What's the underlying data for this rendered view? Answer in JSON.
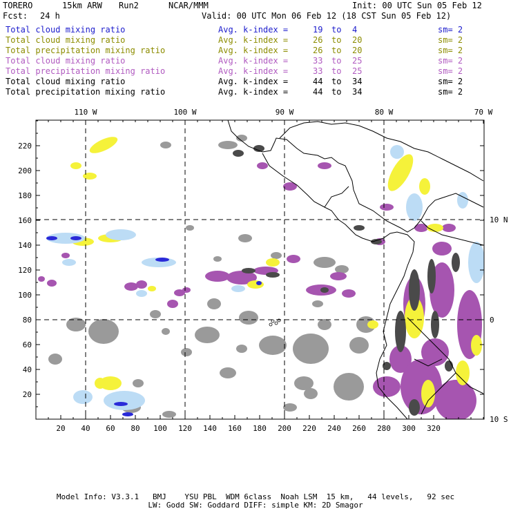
{
  "header": {
    "model": "TORERO",
    "resolution": "15km ARW",
    "run": "Run2",
    "org": "NCAR/MMM",
    "init": "Init: 00 UTC Sun 05 Feb 12",
    "fcst_label": "Fcst:",
    "fcst_value": "24 h",
    "valid": "Valid: 00 UTC Mon 06 Feb 12 (18 CST Sun 05 Feb 12)"
  },
  "legend": [
    {
      "field": "Total cloud mixing ratio",
      "kindex": "Avg. k-index =",
      "k1": "19",
      "to": "to",
      "k2": "4",
      "sm": "sm= 2",
      "color": "#1c1ccc"
    },
    {
      "field": "Total cloud mixing ratio",
      "kindex": "Avg. k-index =",
      "k1": "26",
      "to": "to",
      "k2": "20",
      "sm": "sm= 2",
      "color": "#8c8c00"
    },
    {
      "field": "Total precipitation mixing ratio",
      "kindex": "Avg. k-index =",
      "k1": "26",
      "to": "to",
      "k2": "20",
      "sm": "sm= 2",
      "color": "#8c8c00"
    },
    {
      "field": "Total cloud mixing ratio",
      "kindex": "Avg. k-index =",
      "k1": "33",
      "to": "to",
      "k2": "25",
      "sm": "sm= 2",
      "color": "#b05ac0"
    },
    {
      "field": "Total precipitation mixing ratio",
      "kindex": "Avg. k-index =",
      "k1": "33",
      "to": "to",
      "k2": "25",
      "sm": "sm= 2",
      "color": "#b05ac0"
    },
    {
      "field": "Total cloud mixing ratio",
      "kindex": "Avg. k-index =",
      "k1": "44",
      "to": "to",
      "k2": "34",
      "sm": "sm= 2",
      "color": "#000000"
    },
    {
      "field": "Total precipitation mixing ratio",
      "kindex": "Avg. k-index =",
      "k1": "44",
      "to": "to",
      "k2": "34",
      "sm": "sm= 2",
      "color": "#000000"
    }
  ],
  "map": {
    "x_ticks": [
      "20",
      "40",
      "60",
      "80",
      "100",
      "120",
      "140",
      "160",
      "180",
      "200",
      "220",
      "240",
      "260",
      "280",
      "300",
      "320"
    ],
    "y_ticks": [
      "20",
      "40",
      "60",
      "80",
      "100",
      "120",
      "140",
      "160",
      "180",
      "200",
      "220"
    ],
    "lon_labels": [
      "110 W",
      "100 W",
      "90 W",
      "80 W",
      "70 W"
    ],
    "lat_labels": [
      "10 N",
      "0",
      "10 S"
    ],
    "colors": {
      "gray": "#9a9a9a",
      "dark": "#4a4a4a",
      "purple": "#a655b0",
      "yellow": "#f5f23a",
      "lightblue": "#bcdcf5",
      "blue": "#2a2ad8",
      "land": "#000000",
      "grid": "#000000"
    }
  },
  "footer": {
    "line1": "Model Info: V3.3.1   BMJ    YSU PBL  WDM 6class  Noah LSM  15 km,   44 levels,   92 sec",
    "line2": "LW: Godd SW: Goddard DIFF: simple KM: 2D Smagor"
  }
}
